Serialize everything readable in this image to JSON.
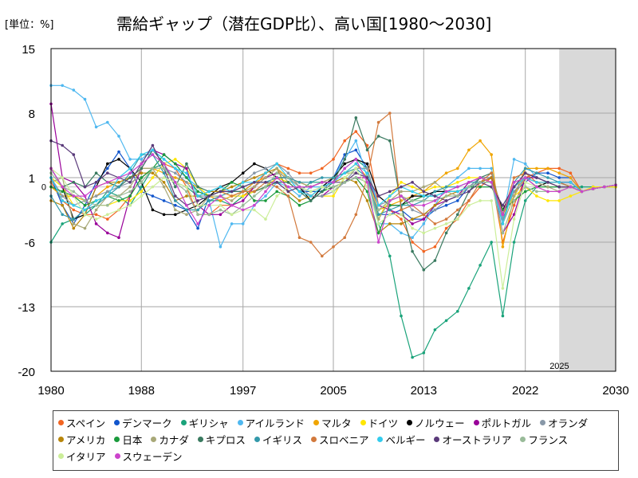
{
  "header": {
    "unit": "[単位：%]",
    "title": "需給ギャップ（潜在GDP比）、高い国[1980～2030]"
  },
  "colors": {
    "forecast_shade": "#d9d9d9",
    "grid": "#a6a6a6",
    "axis": "#000000"
  },
  "chart_data": {
    "type": "line",
    "title": "需給ギャップ（潜在GDP比）、高い国[1980～2030]",
    "ylabel": "[単位：%]",
    "xlim": [
      1980,
      2030
    ],
    "ylim": [
      -20,
      15
    ],
    "yticks": [
      15,
      8,
      1,
      -6,
      -13,
      -20
    ],
    "xticks": [
      1980,
      1988,
      1997,
      2005,
      2013,
      2022,
      2030
    ],
    "zero_label": "0",
    "forecast_start": 2025,
    "forecast_label": "2025",
    "series": [
      {
        "name": "スペイン",
        "color": "#f26522",
        "start": 1980,
        "values": [
          0.5,
          -1.5,
          -2.5,
          -3.0,
          -3.0,
          -3.5,
          -2.5,
          -1.0,
          1.0,
          2.0,
          2.5,
          2.0,
          0.0,
          -3.0,
          -3.0,
          -2.0,
          -2.0,
          -1.0,
          0.0,
          1.5,
          2.5,
          2.0,
          1.5,
          1.5,
          2.0,
          3.0,
          5.0,
          6.0,
          4.5,
          -2.0,
          -2.5,
          -3.5,
          -6.0,
          -7.0,
          -6.5,
          -4.5,
          -3.5,
          -1.5,
          0.0,
          1.0,
          -6.0,
          -2.0,
          1.0,
          1.5,
          2.0,
          2.0,
          1.5
        ]
      },
      {
        "name": "デンマーク",
        "color": "#1155cc",
        "start": 1980,
        "values": [
          1.0,
          -2.0,
          -4.0,
          -2.0,
          0.5,
          2.0,
          3.8,
          2.0,
          -0.5,
          -1.0,
          -1.5,
          -2.0,
          -2.5,
          -4.5,
          -1.0,
          -0.5,
          -0.5,
          -0.5,
          0.5,
          0.5,
          1.0,
          1.0,
          -0.5,
          -0.5,
          -0.5,
          1.0,
          3.5,
          4.0,
          2.0,
          -3.0,
          -3.0,
          -2.5,
          -3.5,
          -3.5,
          -2.5,
          -2.0,
          -1.5,
          0.0,
          1.0,
          1.0,
          -3.5,
          -0.5,
          0.5,
          1.5,
          1.5,
          1.0,
          1.0
        ]
      },
      {
        "name": "ギリシャ",
        "color": "#1aa37a",
        "start": 1980,
        "values": [
          -6.0,
          -4.0,
          -3.5,
          -3.0,
          -2.0,
          -0.5,
          -1.0,
          -2.0,
          0.0,
          2.0,
          2.5,
          0.5,
          0.0,
          -1.0,
          -1.5,
          -1.5,
          -2.0,
          -1.0,
          -0.5,
          0.0,
          0.5,
          0.5,
          -0.5,
          0.5,
          0.5,
          0.5,
          2.0,
          3.0,
          2.0,
          -4.0,
          -7.5,
          -14.0,
          -18.5,
          -18.0,
          -15.5,
          -14.5,
          -13.5,
          -11.0,
          -8.5,
          -6.0,
          -14.0,
          -6.0,
          -1.5,
          0.0,
          0.5,
          0.5,
          0.0,
          0.0,
          0.0,
          0.0,
          0.0
        ]
      },
      {
        "name": "アイルランド",
        "color": "#4fb8f0",
        "start": 1980,
        "values": [
          11.0,
          11.0,
          10.5,
          9.5,
          6.5,
          7.0,
          5.5,
          3.0,
          3.0,
          4.0,
          3.0,
          2.0,
          1.0,
          0.0,
          -1.5,
          -6.5,
          -4.0,
          -4.0,
          -2.0,
          -1.0,
          0.5,
          0.0,
          -1.0,
          0.0,
          0.0,
          1.0,
          3.0,
          5.0,
          1.0,
          -4.0,
          -4.0,
          -5.0,
          -5.5,
          -4.0,
          -2.0,
          0.0,
          1.0,
          2.0,
          2.0,
          2.0,
          -3.5,
          3.0,
          2.5,
          1.0,
          0.5,
          0.5,
          0.5
        ]
      },
      {
        "name": "マルタ",
        "color": "#f0a500",
        "start": 1980,
        "values": [
          0.0,
          -1.0,
          -1.0,
          -1.5,
          -1.0,
          0.0,
          0.5,
          1.0,
          2.0,
          2.0,
          1.5,
          1.0,
          0.5,
          0.0,
          -1.0,
          -1.5,
          -1.0,
          -0.5,
          0.5,
          1.0,
          2.0,
          1.0,
          0.5,
          0.0,
          0.5,
          1.0,
          1.5,
          2.5,
          1.0,
          -2.5,
          -2.0,
          -1.5,
          -1.0,
          -0.5,
          0.5,
          1.5,
          2.0,
          4.0,
          5.0,
          3.5,
          -6.5,
          -1.0,
          2.0,
          2.0,
          2.0,
          1.5,
          1.0
        ]
      },
      {
        "name": "ドイツ",
        "color": "#ffe600",
        "start": 1980,
        "values": [
          1.0,
          0.0,
          -2.0,
          -2.5,
          -2.0,
          -2.0,
          -1.5,
          -1.5,
          -0.5,
          1.0,
          2.5,
          3.0,
          2.0,
          0.0,
          -1.0,
          -0.5,
          -1.0,
          -1.0,
          -0.5,
          0.0,
          1.0,
          0.5,
          -0.5,
          -1.0,
          -1.0,
          -1.0,
          1.0,
          2.0,
          2.0,
          -3.5,
          -1.0,
          0.5,
          0.0,
          -0.5,
          0.0,
          0.0,
          0.5,
          1.0,
          1.0,
          0.5,
          -3.0,
          -1.0,
          0.0,
          -1.0,
          -1.5,
          -1.5,
          -1.0,
          -0.5,
          0.0,
          0.0,
          0.0
        ]
      },
      {
        "name": "ノルウェー",
        "color": "#000000",
        "start": 1980,
        "values": [
          2.0,
          0.0,
          -3.5,
          -3.0,
          0.0,
          2.5,
          3.0,
          2.0,
          0.5,
          -2.5,
          -3.0,
          -3.0,
          -2.5,
          -2.0,
          -1.0,
          0.0,
          0.5,
          1.5,
          2.5,
          2.0,
          1.0,
          1.0,
          0.0,
          -1.5,
          0.0,
          1.0,
          2.5,
          3.0,
          2.5,
          -1.0,
          -2.0,
          -2.0,
          -1.0,
          -1.0,
          -0.5,
          -0.5,
          -0.5,
          0.0,
          0.5,
          1.0,
          -2.5,
          0.0,
          1.0,
          0.0,
          0.5,
          0.5,
          0.5
        ]
      },
      {
        "name": "ポルトガル",
        "color": "#990099",
        "start": 1980,
        "values": [
          9.0,
          1.0,
          0.5,
          -1.0,
          -4.0,
          -5.0,
          -5.5,
          -1.0,
          2.0,
          4.0,
          3.5,
          2.5,
          2.0,
          -2.0,
          -3.0,
          -3.0,
          -2.0,
          -1.5,
          0.0,
          1.0,
          1.5,
          1.0,
          0.0,
          -1.0,
          -1.0,
          0.0,
          0.5,
          1.0,
          1.0,
          -2.0,
          -2.5,
          -3.0,
          -4.0,
          -3.5,
          -2.0,
          -1.5,
          -1.0,
          0.5,
          1.0,
          1.0,
          -5.0,
          -3.0,
          1.0,
          1.0,
          0.5,
          0.5,
          0.5
        ]
      },
      {
        "name": "オランダ",
        "color": "#8898a8",
        "start": 1980,
        "values": [
          1.0,
          -1.0,
          -2.0,
          -1.5,
          -1.0,
          -0.5,
          0.0,
          0.5,
          1.0,
          2.0,
          2.0,
          1.5,
          0.5,
          -1.0,
          -1.0,
          -0.5,
          -0.5,
          0.5,
          1.5,
          2.0,
          2.5,
          1.5,
          0.0,
          -1.0,
          -1.0,
          -0.5,
          0.5,
          2.0,
          2.0,
          -2.0,
          -1.5,
          -1.0,
          -2.5,
          -3.0,
          -2.5,
          -1.5,
          -1.0,
          0.0,
          1.0,
          1.0,
          -3.5,
          -0.5,
          1.0,
          0.5,
          0.0,
          0.0,
          0.0
        ]
      },
      {
        "name": "アメリカ",
        "color": "#b8860b",
        "start": 1980,
        "values": [
          -1.5,
          -2.0,
          -4.5,
          -3.0,
          0.0,
          0.5,
          0.5,
          1.0,
          1.5,
          1.5,
          0.5,
          -1.5,
          -1.0,
          -1.0,
          -0.5,
          -0.5,
          0.0,
          0.5,
          1.0,
          1.5,
          2.0,
          -0.5,
          -1.5,
          -1.0,
          0.0,
          0.5,
          1.0,
          0.5,
          -1.5,
          -5.0,
          -4.0,
          -4.0,
          -3.5,
          -3.0,
          -2.0,
          -1.0,
          -0.5,
          0.0,
          0.5,
          1.0,
          -3.0,
          0.0,
          1.0,
          0.5,
          0.5,
          0.0,
          0.0
        ]
      },
      {
        "name": "日本",
        "color": "#1a9a3c",
        "start": 1980,
        "values": [
          0.0,
          -0.5,
          -1.0,
          -2.0,
          -1.5,
          -1.0,
          -1.5,
          -1.0,
          1.0,
          2.0,
          3.5,
          2.5,
          1.0,
          -0.5,
          -1.0,
          -0.5,
          0.5,
          0.0,
          -1.5,
          -1.5,
          -0.5,
          -1.0,
          -2.0,
          -1.5,
          -0.5,
          0.0,
          0.5,
          1.0,
          -0.5,
          -5.0,
          -2.0,
          -2.0,
          -1.5,
          -1.0,
          -1.0,
          -0.5,
          -0.5,
          0.0,
          0.0,
          0.0,
          -2.5,
          -1.5,
          -0.5,
          0.0,
          0.0,
          0.0,
          0.0
        ]
      },
      {
        "name": "カナダ",
        "color": "#a8a878",
        "start": 1980,
        "values": [
          0.5,
          1.0,
          -4.0,
          -4.5,
          -2.5,
          -1.0,
          -1.0,
          0.0,
          2.0,
          2.0,
          0.0,
          -2.5,
          -3.0,
          -2.5,
          -1.0,
          -1.0,
          -1.5,
          -0.5,
          0.0,
          1.0,
          2.0,
          0.5,
          0.5,
          0.0,
          0.5,
          1.0,
          1.5,
          1.5,
          1.0,
          -3.5,
          -1.5,
          -0.5,
          -0.5,
          0.0,
          0.5,
          -0.5,
          -1.0,
          0.0,
          0.5,
          0.5,
          -4.0,
          -1.0,
          1.0,
          0.5,
          0.0,
          -0.5,
          0.0
        ]
      },
      {
        "name": "キプロス",
        "color": "#3a7a60",
        "start": 1980,
        "values": [
          2.0,
          0.0,
          0.5,
          0.0,
          1.5,
          0.5,
          0.0,
          1.0,
          2.0,
          4.0,
          2.5,
          0.0,
          2.5,
          0.0,
          -0.5,
          0.0,
          -0.5,
          -0.5,
          -0.5,
          0.0,
          0.5,
          0.5,
          -0.5,
          -1.5,
          -0.5,
          0.5,
          3.0,
          7.5,
          4.0,
          5.5,
          5.0,
          -2.0,
          -7.0,
          -9.0,
          -8.0,
          -5.0,
          -3.0,
          -0.5,
          1.0,
          1.5,
          -3.0,
          0.0,
          1.5,
          1.0,
          0.5,
          0.5,
          0.0
        ]
      },
      {
        "name": "イギリス",
        "color": "#3399aa",
        "start": 1980,
        "values": [
          -1.0,
          -3.0,
          -3.5,
          -2.5,
          -2.0,
          -1.0,
          0.0,
          1.5,
          3.5,
          3.5,
          1.5,
          -1.5,
          -2.5,
          -2.5,
          -1.5,
          -1.0,
          -0.5,
          0.0,
          0.5,
          0.5,
          1.0,
          1.0,
          0.5,
          0.5,
          1.0,
          1.0,
          1.5,
          2.0,
          1.0,
          -3.0,
          -2.5,
          -2.0,
          -2.0,
          -1.5,
          -0.5,
          0.0,
          0.0,
          0.5,
          0.5,
          0.5,
          -4.0,
          0.5,
          2.0,
          1.5,
          1.0,
          0.5,
          0.0
        ]
      },
      {
        "name": "スロベニア",
        "color": "#d2793c",
        "start": 1980,
        "values": [
          null,
          null,
          null,
          null,
          null,
          null,
          null,
          null,
          null,
          null,
          null,
          null,
          null,
          null,
          null,
          -0.5,
          -1.0,
          -0.5,
          -0.5,
          0.5,
          0.0,
          -1.0,
          -5.5,
          -6.0,
          -7.5,
          -6.5,
          -5.5,
          -3.0,
          1.0,
          7.0,
          8.0,
          -2.5,
          -2.0,
          -3.0,
          -4.0,
          -3.5,
          -2.5,
          -1.5,
          0.5,
          1.5,
          -3.0,
          1.0,
          1.5,
          0.5,
          0.5,
          0.5,
          0.0
        ]
      },
      {
        "name": "ベルギー",
        "color": "#33ccee",
        "start": 1980,
        "values": [
          1.0,
          -1.5,
          -2.0,
          -2.5,
          -1.5,
          -1.0,
          1.0,
          2.0,
          3.5,
          4.0,
          3.0,
          2.0,
          1.5,
          -1.0,
          -0.5,
          0.0,
          -0.5,
          0.5,
          0.5,
          1.5,
          2.5,
          1.0,
          -0.5,
          -1.0,
          0.0,
          0.5,
          1.5,
          2.5,
          1.5,
          -2.0,
          -1.0,
          0.0,
          -0.5,
          -1.0,
          -1.0,
          -0.5,
          -0.5,
          0.0,
          0.5,
          0.5,
          -4.0,
          0.0,
          1.0,
          0.5,
          0.5,
          0.5,
          0.5
        ]
      },
      {
        "name": "オーストラリア",
        "color": "#5a3a7a",
        "start": 1980,
        "values": [
          5.0,
          4.5,
          3.5,
          0.0,
          0.5,
          1.5,
          1.0,
          0.5,
          2.5,
          4.5,
          2.0,
          -1.0,
          -2.0,
          -1.5,
          -1.0,
          -0.5,
          -0.5,
          0.0,
          0.5,
          0.5,
          0.5,
          -0.5,
          0.0,
          0.0,
          0.5,
          0.5,
          0.5,
          1.5,
          1.0,
          -1.0,
          -0.5,
          0.0,
          0.5,
          -0.5,
          -1.0,
          -1.5,
          -1.0,
          -0.5,
          0.5,
          0.0,
          -2.0,
          0.0,
          1.5,
          1.0,
          0.5,
          0.0,
          0.0
        ]
      },
      {
        "name": "フランス",
        "color": "#99bb99",
        "start": 1980,
        "values": [
          1.5,
          0.0,
          -0.5,
          -1.5,
          -2.0,
          -2.0,
          -1.0,
          -0.5,
          0.5,
          2.0,
          2.0,
          0.5,
          -0.5,
          -3.0,
          -3.0,
          -2.5,
          -3.0,
          -2.0,
          -1.0,
          0.0,
          1.5,
          1.0,
          0.0,
          -0.5,
          0.0,
          0.0,
          0.5,
          1.0,
          0.5,
          -2.5,
          -1.5,
          -1.0,
          -1.5,
          -1.5,
          -1.5,
          -1.0,
          -1.0,
          0.0,
          0.5,
          0.5,
          -5.0,
          -1.5,
          0.0,
          -0.5,
          -0.5,
          -0.5,
          0.0
        ]
      },
      {
        "name": "イタリア",
        "color": "#ccee99",
        "start": 1980,
        "values": [
          2.0,
          1.0,
          -1.0,
          -3.0,
          -3.5,
          -3.0,
          -2.5,
          -2.0,
          -1.0,
          0.0,
          1.0,
          0.5,
          0.0,
          -2.0,
          -2.0,
          -2.0,
          -3.0,
          -2.5,
          -2.5,
          -3.5,
          -1.0,
          0.0,
          0.0,
          -0.5,
          0.0,
          -0.5,
          1.0,
          2.0,
          0.0,
          -4.0,
          -3.0,
          -3.0,
          -4.5,
          -5.0,
          -4.5,
          -4.0,
          -3.5,
          -2.0,
          -1.5,
          -1.5,
          -11.0,
          -3.5,
          0.5,
          0.0,
          -0.5,
          -0.5,
          0.0
        ]
      },
      {
        "name": "スウェーデン",
        "color": "#cc44cc",
        "start": 1980,
        "values": [
          2.0,
          0.0,
          -1.0,
          -1.0,
          0.0,
          0.5,
          1.0,
          1.5,
          2.5,
          3.5,
          2.5,
          0.5,
          -2.0,
          -4.0,
          -2.0,
          -1.0,
          -2.0,
          -2.5,
          -2.0,
          -0.5,
          1.0,
          0.0,
          0.0,
          0.0,
          0.5,
          0.5,
          2.0,
          3.0,
          0.5,
          -6.0,
          -1.5,
          -1.0,
          -2.0,
          -2.0,
          -1.5,
          -0.5,
          0.0,
          0.5,
          1.0,
          0.5,
          -3.0,
          0.5,
          1.0,
          0.0,
          -0.5,
          -0.5,
          0.0
        ]
      }
    ],
    "forecast_tail": [
      -0.8,
      -0.5,
      -0.2,
      0.0,
      0.2
    ]
  }
}
